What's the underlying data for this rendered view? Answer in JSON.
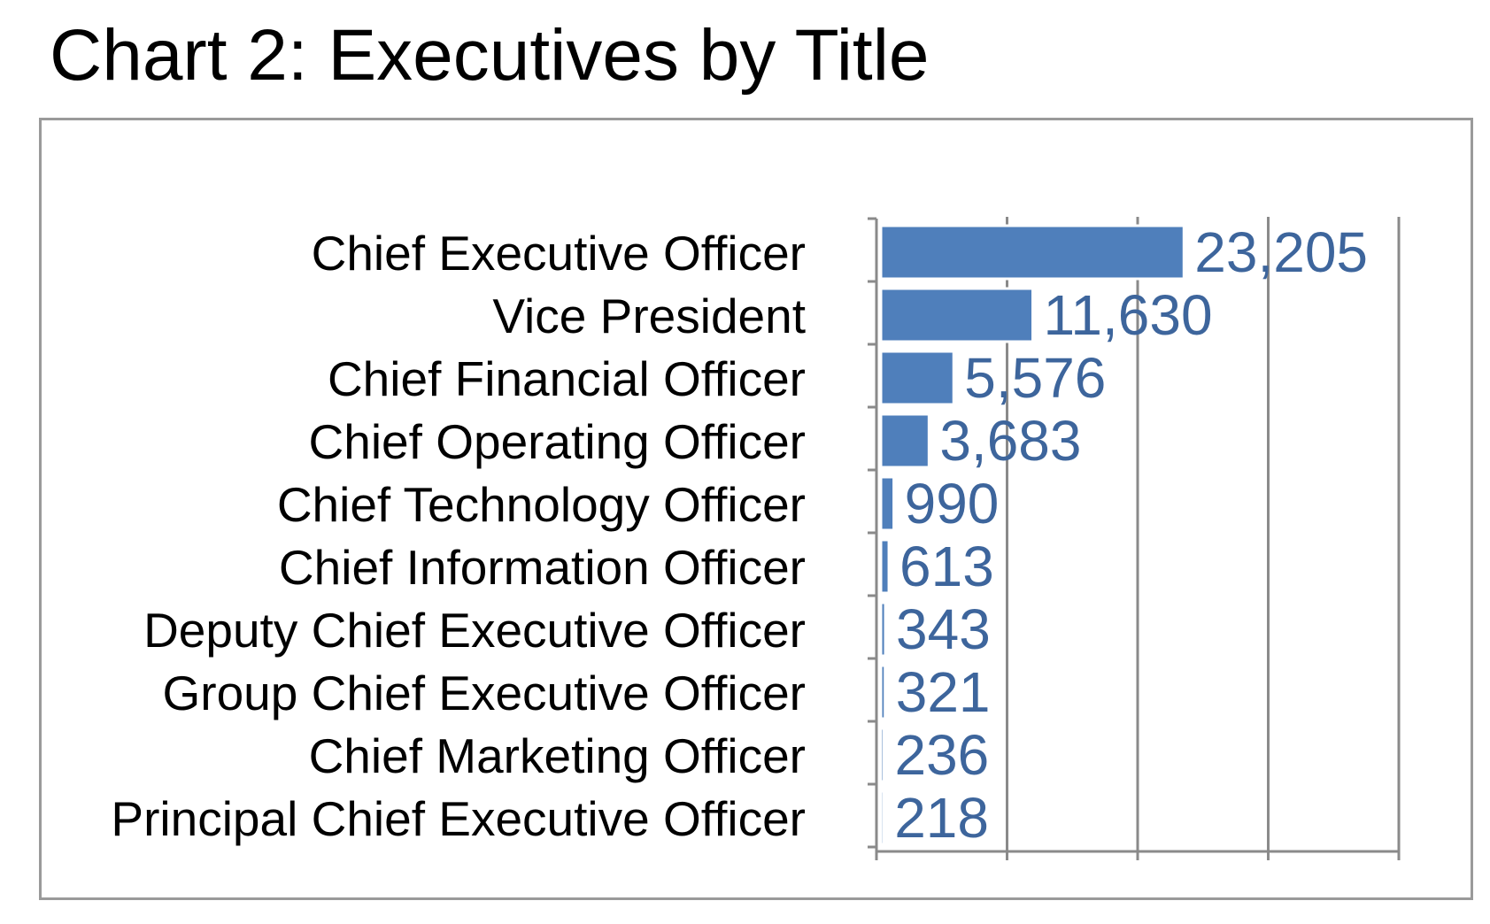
{
  "chart_data": {
    "type": "bar",
    "orientation": "horizontal",
    "title": "Chart 2: Executives by Title",
    "categories": [
      "Chief Executive Officer",
      "Vice President",
      "Chief Financial Officer",
      "Chief Operating Officer",
      "Chief Technology Officer",
      "Chief Information Officer",
      "Deputy Chief Executive Officer",
      "Group Chief Executive Officer",
      "Chief Marketing Officer",
      "Principal Chief Executive Officer"
    ],
    "values": [
      23205,
      11630,
      5576,
      3683,
      990,
      613,
      343,
      321,
      236,
      218
    ],
    "value_labels": [
      "23,205",
      "11,630",
      "5,576",
      "3,683",
      "990",
      "613",
      "343",
      "321",
      "236",
      "218"
    ],
    "xlim": [
      0,
      40000
    ],
    "grid": true,
    "legend": "none",
    "colors": {
      "bar": "#4f7fbb",
      "bar_outline": "#ffffff",
      "value_label": "#3d659c",
      "category_label": "#000000",
      "grid": "#8a8a8a",
      "axis": "#8a8a8a",
      "frame": "#9a9a9a"
    }
  }
}
